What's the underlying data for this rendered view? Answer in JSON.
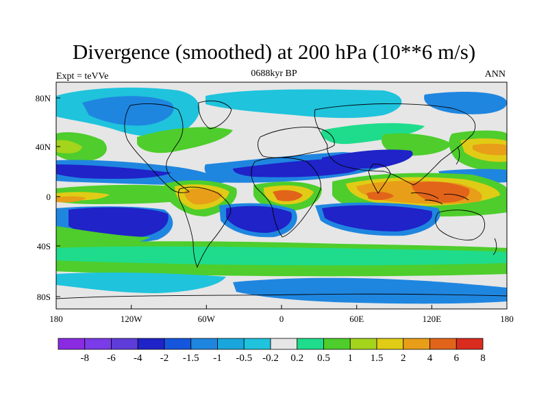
{
  "title": "Divergence (smoothed) at 200 hPa (10**6 m/s)",
  "left_label": "Expt = teVVe",
  "center_label": "0688kyr BP",
  "right_label": "ANN",
  "lat_ticks": [
    "80N",
    "40N",
    "0",
    "40S",
    "80S"
  ],
  "lon_ticks": [
    "180",
    "120W",
    "60W",
    "0",
    "60E",
    "120E",
    "180"
  ],
  "colorbar": {
    "labels": [
      "-8",
      "-6",
      "-4",
      "-2",
      "-1.5",
      "-1",
      "-0.5",
      "-0.2",
      "0.2",
      "0.5",
      "1",
      "1.5",
      "2",
      "4",
      "6",
      "8"
    ],
    "colors": [
      "#8a2be2",
      "#7a3be8",
      "#5e3cd9",
      "#1f23c8",
      "#1556dd",
      "#1f86e0",
      "#19a6dc",
      "#1fc3dc",
      "#e6e6e6",
      "#1fdc8c",
      "#4ecd2c",
      "#a4d41c",
      "#e0cc16",
      "#e89e18",
      "#e2641a",
      "#d92b1e"
    ]
  },
  "map_colors": {
    "neutral": "#e6e6e6",
    "light_blue": "#1fc3dc",
    "mid_blue": "#1f86e0",
    "deep_blue": "#1f23c8",
    "teal": "#1fdc8c",
    "green": "#4ecd2c",
    "yellow_green": "#a4d41c",
    "yellow": "#e0cc16",
    "orange": "#e89e18",
    "red_orange": "#e2641a"
  }
}
